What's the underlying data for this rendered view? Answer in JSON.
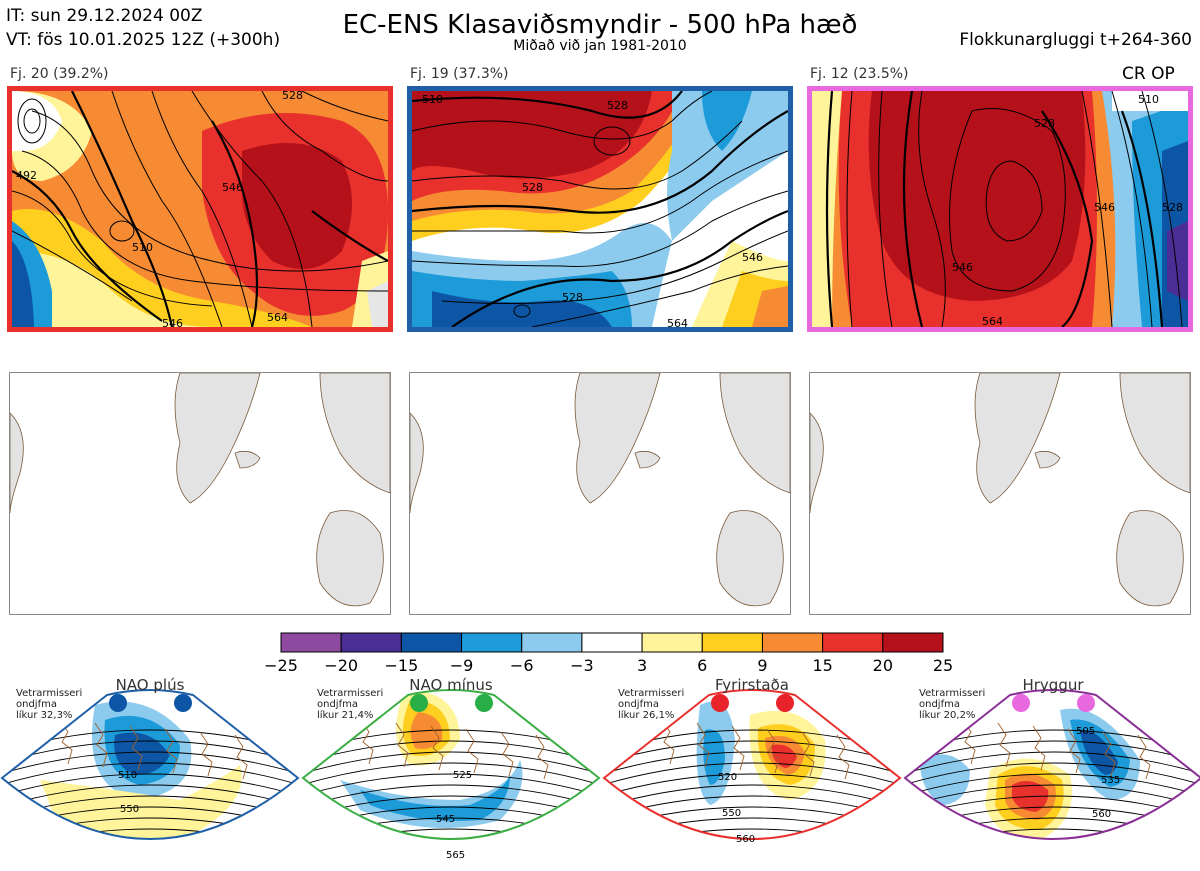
{
  "header": {
    "it": "IT: sun 29.12.2024 00Z",
    "vt": "VT: fös 10.01.2025 12Z  (+300h)",
    "title": "EC-ENS Klasaviðsmyndir - 500 hPa hæð",
    "subtitle": "Miðað við jan 1981-2010",
    "window": "Flokkunargluggi t+264-360",
    "crop": "CR OP"
  },
  "clusters": [
    {
      "label": "Fj. 20 (39.2%)",
      "border": "#e8302c",
      "contours": [
        "528",
        "546",
        "564",
        "510",
        "492",
        "546"
      ]
    },
    {
      "label": "Fj. 19 (37.3%)",
      "border": "#1f5fa8",
      "contours": [
        "510",
        "528",
        "528",
        "546",
        "528",
        "564"
      ]
    },
    {
      "label": "Fj. 12 (23.5%)",
      "border": "#e868e0",
      "contours": [
        "528",
        "546",
        "528",
        "510",
        "546",
        "564"
      ]
    }
  ],
  "colorbar": {
    "ticks": [
      "−25",
      "−20",
      "−15",
      "−9",
      "−6",
      "−3",
      "3",
      "6",
      "9",
      "15",
      "20",
      "25"
    ],
    "colors": [
      "#8e4aa0",
      "#4b2d96",
      "#0d56a6",
      "#1d9bd9",
      "#8ccbee",
      "#ffffff",
      "#fff49a",
      "#fecf1f",
      "#f68b33",
      "#e8312c",
      "#b5111a"
    ]
  },
  "regimes": [
    {
      "title": "NAO plús",
      "note": "Vetrarmisseri\nondjfma\nlíkur 32,3%",
      "color": "#1f5fa8",
      "dot": "#0d56a6",
      "labels": [
        "510",
        "550"
      ]
    },
    {
      "title": "NAO mínus",
      "note": "Vetrarmisseri\nondjfma\nlíkur 21,4%",
      "color": "#3bae45",
      "dot": "#27ae46",
      "labels": [
        "525",
        "545",
        "565"
      ]
    },
    {
      "title": "Fyrirstaða",
      "note": "Vetrarmisseri\nondjfma\nlíkur 26,1%",
      "color": "#e8302c",
      "dot": "#e8232a",
      "labels": [
        "520",
        "550",
        "560"
      ]
    },
    {
      "title": "Hryggur",
      "note": "Vetrarmisseri\nondjfma\nlíkur 20,2%",
      "color": "#8a2f96",
      "dot": "#e868e0",
      "labels": [
        "505",
        "535",
        "560"
      ]
    }
  ]
}
